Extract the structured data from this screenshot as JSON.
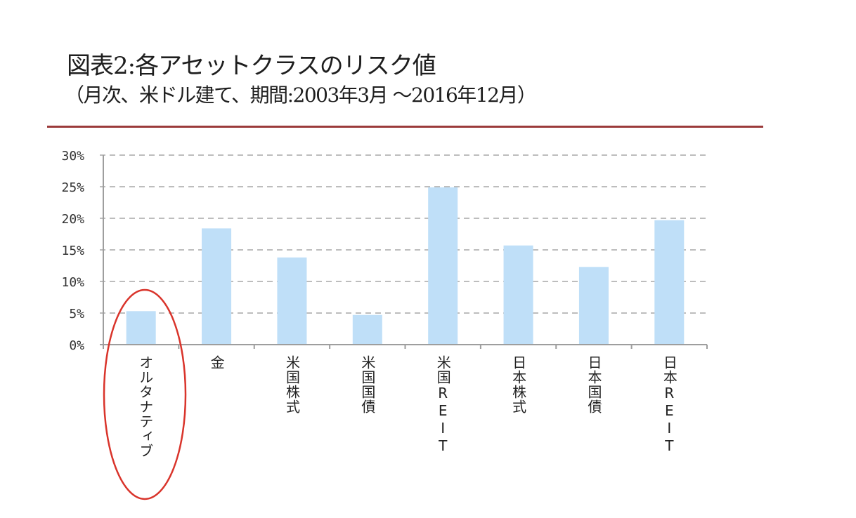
{
  "header": {
    "title": "図表2:各アセットクラスのリスク値",
    "subtitle": "（月次、米ドル建て、期間:2003年3月 〜2016年12月）",
    "rule_color": "#9b3a3a"
  },
  "colors": {
    "bar": "#bfdff8",
    "grid": "#bdbdbd",
    "axis": "#9e9e9e",
    "highlight_ellipse": "#d9342b"
  },
  "chart_data": {
    "type": "bar",
    "title": "図表2:各アセットクラスのリスク値",
    "subtitle": "（月次、米ドル建て、期間:2003年3月 〜2016年12月）",
    "xlabel": "",
    "ylabel": "",
    "categories": [
      "オルタナティブ",
      "金",
      "米国株式",
      "米国国債",
      "米国REIT",
      "日本株式",
      "日本国債",
      "日本REIT"
    ],
    "values": [
      5.3,
      18.4,
      13.8,
      4.7,
      24.9,
      15.7,
      12.3,
      19.7
    ],
    "unit": "%",
    "ylim": [
      0,
      30
    ],
    "yticks": [
      "0%",
      "5%",
      "10%",
      "15%",
      "20%",
      "25%",
      "30%"
    ],
    "grid": true,
    "grid_style": "dashed",
    "legend": null,
    "annotations": [
      {
        "type": "ellipse",
        "target": "オルタナティブ",
        "color": "#d9342b"
      }
    ]
  }
}
